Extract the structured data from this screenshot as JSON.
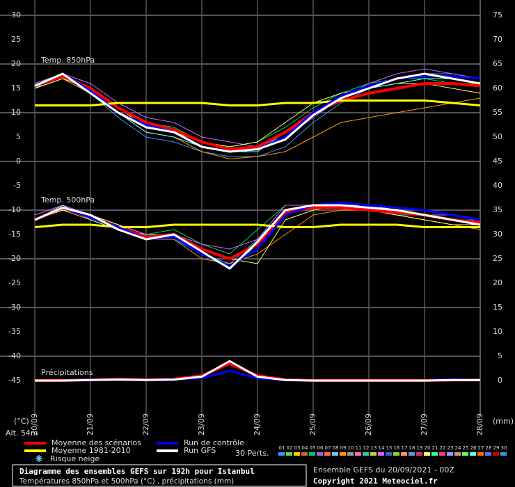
{
  "chart_data": {
    "type": "line",
    "title": "Diagramme des ensembles GEFS sur 192h pour Istanbul",
    "subtitle": "Températures 850hPa et 500hPa (°C) , précipitations (mm)",
    "run_info": "Ensemble GEFS du 20/09/2021 - 00Z",
    "copyright": "Copyright 2021 Meteociel.fr",
    "altitude": "Alt. 54m",
    "y_label": "(°C)",
    "y2_label": "(mm)",
    "annotations": [
      "Temp. 850hPa",
      "Temp. 500hPa",
      "Précipitations"
    ],
    "snow_legend": "Risque neige",
    "perturbations_label": "30 Perts.",
    "x": [
      0,
      12,
      24,
      36,
      48,
      60,
      72,
      84,
      96,
      108,
      120,
      132,
      144,
      156,
      168,
      180,
      192
    ],
    "xlim": [
      0,
      192
    ],
    "xticks": [
      {
        "value": 0,
        "label": "20/09"
      },
      {
        "value": 24,
        "label": "21/09"
      },
      {
        "value": 48,
        "label": "22/09"
      },
      {
        "value": 72,
        "label": "23/09"
      },
      {
        "value": 96,
        "label": "24/09"
      },
      {
        "value": 120,
        "label": "25/09"
      },
      {
        "value": 144,
        "label": "26/09"
      },
      {
        "value": 168,
        "label": "27/09"
      },
      {
        "value": 192,
        "label": "28/09"
      }
    ],
    "ylim": [
      -45,
      30
    ],
    "yticks": [
      -45,
      -40,
      -35,
      -30,
      -25,
      -20,
      -15,
      -10,
      -5,
      0,
      5,
      10,
      15,
      20,
      25,
      30
    ],
    "y2lim": [
      0,
      75
    ],
    "y2ticks": [
      0,
      5,
      10,
      15,
      20,
      25,
      30,
      35,
      40,
      45,
      50,
      55,
      60,
      65,
      70,
      75
    ],
    "grid": true,
    "series": [
      {
        "name": "Moyenne des scénarios",
        "color": "#ff0000",
        "values_850": [
          15.5,
          17.5,
          15,
          11,
          8,
          6.5,
          4,
          2.5,
          3,
          6,
          10,
          12.5,
          14,
          15,
          16,
          16,
          15.5
        ],
        "values_500": [
          -12,
          -9.5,
          -11.5,
          -13.5,
          -15.5,
          -15,
          -18,
          -20,
          -17,
          -10.5,
          -9.5,
          -9.5,
          -10,
          -10.5,
          -11,
          -12,
          -12.5
        ],
        "values_precip": [
          0,
          0,
          0.2,
          0.3,
          0.2,
          0.3,
          1,
          3.5,
          1,
          0.2,
          0,
          0,
          0,
          0,
          0,
          0.1,
          0.1
        ]
      },
      {
        "name": "Moyenne 1981-2010",
        "color": "#ffff00",
        "values_850": [
          11.5,
          11.5,
          11.5,
          12,
          12,
          12,
          12,
          11.5,
          11.5,
          12,
          12,
          12.5,
          12.5,
          12.5,
          12.5,
          12,
          11.5
        ],
        "values_500": [
          -13.5,
          -13,
          -13,
          -13.5,
          -13.5,
          -13,
          -13,
          -13,
          -13,
          -13.5,
          -13.5,
          -13,
          -13,
          -13,
          -13.5,
          -13.5,
          -13.5
        ]
      },
      {
        "name": "Run de contrôle",
        "color": "#0000ff",
        "values_850": [
          15.5,
          18,
          14.5,
          10,
          7.5,
          6,
          3,
          2,
          2.5,
          5,
          10,
          13.5,
          15.5,
          17,
          17.5,
          17.5,
          17
        ],
        "values_500": [
          -12,
          -9.5,
          -11.5,
          -13.5,
          -16,
          -15.5,
          -19,
          -21.5,
          -18,
          -11,
          -9,
          -8.5,
          -9,
          -9.5,
          -10,
          -11,
          -12
        ],
        "values_precip": [
          0,
          0,
          0.2,
          0.2,
          0.1,
          0.3,
          0.5,
          2,
          0.5,
          0.1,
          0,
          0,
          0,
          0,
          0,
          0.3,
          0.1
        ]
      },
      {
        "name": "Run GFS",
        "color": "#ffffff",
        "values_850": [
          15.5,
          18,
          14,
          10,
          7,
          6,
          3,
          2,
          2.5,
          4.5,
          9.5,
          13,
          15,
          17,
          18,
          17,
          16
        ],
        "values_500": [
          -12,
          -9.5,
          -11,
          -14,
          -16,
          -15,
          -18.5,
          -22,
          -16.5,
          -10,
          -9,
          -9,
          -9.5,
          -10,
          -11,
          -12,
          -13
        ],
        "values_precip": [
          0,
          0,
          0.1,
          0.2,
          0.1,
          0.2,
          0.8,
          4,
          0.8,
          0.1,
          0,
          0,
          0,
          0,
          0,
          0.1,
          0.1
        ]
      }
    ],
    "perturbations": [
      {
        "name": "01",
        "color": "#3399ff",
        "values_850": [
          15,
          17,
          14,
          9,
          5,
          4,
          2,
          1,
          1,
          3,
          8,
          12,
          15,
          17,
          18,
          18,
          17
        ],
        "values_500": [
          -12,
          -10,
          -12,
          -14,
          -16,
          -16,
          -19,
          -21,
          -16,
          -10,
          -9,
          -9,
          -10,
          -10,
          -11,
          -12,
          -12
        ]
      },
      {
        "name": "02",
        "color": "#66cc66"
      },
      {
        "name": "03",
        "color": "#ffcc00"
      },
      {
        "name": "04",
        "color": "#cc6633"
      },
      {
        "name": "05",
        "color": "#00cc66",
        "values_850": [
          16,
          18,
          15,
          11,
          8,
          7,
          4,
          3,
          4,
          7,
          11,
          14,
          16,
          17,
          17,
          16,
          16
        ],
        "values_500": [
          -12,
          -9,
          -11,
          -13,
          -15,
          -14,
          -17,
          -19,
          -14,
          -9,
          -9,
          -9,
          -10,
          -11,
          -11,
          -12,
          -13
        ]
      },
      {
        "name": "06",
        "color": "#9966cc"
      },
      {
        "name": "07",
        "color": "#ff6666"
      },
      {
        "name": "08",
        "color": "#66ccff"
      },
      {
        "name": "09",
        "color": "#ff9900",
        "values_850": [
          15,
          17,
          14,
          10,
          6,
          5,
          2,
          0.5,
          1,
          2,
          5,
          8,
          9,
          10,
          11,
          12,
          13
        ],
        "values_500": [
          -12,
          -10,
          -12,
          -14,
          -16,
          -16,
          -20,
          -21,
          -19,
          -15,
          -11,
          -10,
          -10,
          -11,
          -12,
          -13,
          -14
        ]
      },
      {
        "name": "10",
        "color": "#999999"
      },
      {
        "name": "11",
        "color": "#ff66cc"
      },
      {
        "name": "12",
        "color": "#33cc99"
      },
      {
        "name": "13",
        "color": "#cccc33"
      },
      {
        "name": "14",
        "color": "#cc66ff",
        "values_850": [
          16,
          18,
          16,
          12,
          9,
          8,
          5,
          4,
          3,
          5,
          9,
          13,
          16,
          18,
          19,
          18,
          17
        ],
        "values_500": [
          -11,
          -9,
          -11,
          -13,
          -15,
          -15,
          -17,
          -18,
          -16,
          -9,
          -9,
          -9,
          -9,
          -10,
          -11,
          -11,
          -12
        ]
      },
      {
        "name": "15",
        "color": "#3366cc"
      },
      {
        "name": "16",
        "color": "#99cc33"
      },
      {
        "name": "17",
        "color": "#ff9966"
      },
      {
        "name": "18",
        "color": "#6699cc"
      },
      {
        "name": "19",
        "color": "#cc3366"
      },
      {
        "name": "20",
        "color": "#ffff66",
        "values_850": [
          15,
          17,
          15,
          11,
          7,
          6,
          4,
          3,
          4,
          8,
          12,
          14,
          15,
          16,
          16,
          15,
          14
        ],
        "values_500": [
          -12,
          -10,
          -11,
          -13,
          -16,
          -15,
          -18,
          -20,
          -21,
          -12,
          -10,
          -9,
          -10,
          -11,
          -12,
          -13,
          -13
        ]
      },
      {
        "name": "21",
        "color": "#33ff99"
      },
      {
        "name": "22",
        "color": "#ff3399"
      },
      {
        "name": "23",
        "color": "#9999ff"
      },
      {
        "name": "24",
        "color": "#cc9966"
      },
      {
        "name": "25",
        "color": "#66ff66"
      },
      {
        "name": "26",
        "color": "#66ffff",
        "values_850": [
          15,
          18,
          14,
          10,
          6,
          5,
          3,
          2,
          2,
          6,
          10,
          13,
          15,
          16,
          17,
          17,
          16
        ],
        "values_500": [
          -12,
          -9,
          -12,
          -14,
          -15,
          -15,
          -19,
          -22,
          -17,
          -10,
          -9,
          -9,
          -9,
          -10,
          -11,
          -12,
          -13
        ]
      },
      {
        "name": "27",
        "color": "#ff6600"
      },
      {
        "name": "28",
        "color": "#6666ff"
      },
      {
        "name": "29",
        "color": "#cc0000"
      },
      {
        "name": "30",
        "color": "#3399cc"
      }
    ]
  }
}
